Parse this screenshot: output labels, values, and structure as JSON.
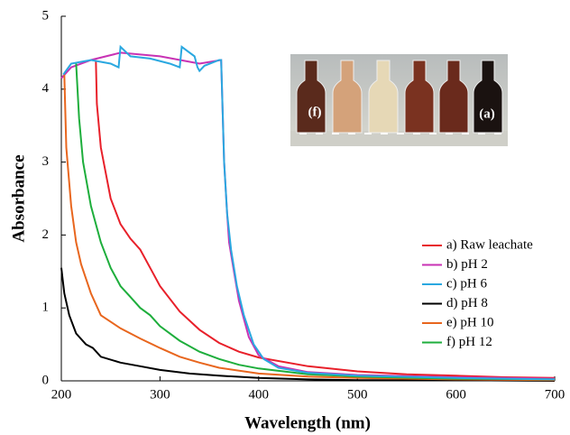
{
  "chart_data": {
    "type": "line",
    "x_label": "Wavelength (nm)",
    "y_label": "Absorbance",
    "xlim": [
      200,
      700
    ],
    "xticks": [
      200,
      300,
      400,
      500,
      600,
      700
    ],
    "ylim": [
      0,
      5
    ],
    "yticks": [
      0,
      1,
      2,
      3,
      4,
      5
    ],
    "legend": "lower right",
    "annotations": [
      "(f)",
      "(a)"
    ],
    "series": [
      {
        "name": "a) Raw leachate",
        "color": "#e8202a",
        "x": [
          235,
          236,
          240,
          250,
          260,
          270,
          280,
          290,
          300,
          320,
          340,
          360,
          380,
          400,
          450,
          500,
          550,
          600,
          650,
          700
        ],
        "values": [
          4.4,
          3.8,
          3.2,
          2.5,
          2.15,
          1.95,
          1.8,
          1.55,
          1.3,
          0.95,
          0.7,
          0.52,
          0.4,
          0.32,
          0.2,
          0.13,
          0.09,
          0.07,
          0.05,
          0.04
        ]
      },
      {
        "name": "b) pH 2",
        "color": "#c832b4",
        "x": [
          200,
          210,
          230,
          260,
          300,
          340,
          362,
          365,
          368,
          370,
          375,
          380,
          390,
          400,
          420,
          450,
          500,
          600,
          700
        ],
        "values": [
          4.15,
          4.3,
          4.4,
          4.5,
          4.45,
          4.35,
          4.4,
          3.0,
          2.3,
          1.9,
          1.5,
          1.1,
          0.6,
          0.35,
          0.2,
          0.12,
          0.08,
          0.05,
          0.03
        ]
      },
      {
        "name": "c) pH 6",
        "color": "#2aa8e0",
        "x": [
          202,
          210,
          230,
          250,
          258,
          260,
          270,
          290,
          310,
          320,
          322,
          335,
          338,
          340,
          345,
          360,
          362,
          365,
          368,
          372,
          378,
          385,
          395,
          405,
          420,
          450,
          500,
          600,
          700
        ],
        "values": [
          4.2,
          4.35,
          4.4,
          4.35,
          4.3,
          4.58,
          4.45,
          4.42,
          4.35,
          4.3,
          4.58,
          4.45,
          4.3,
          4.25,
          4.32,
          4.4,
          4.4,
          3.0,
          2.3,
          1.8,
          1.3,
          0.9,
          0.5,
          0.3,
          0.18,
          0.11,
          0.07,
          0.04,
          0.02
        ]
      },
      {
        "name": "d) pH 8",
        "color": "#000000",
        "x": [
          200,
          203,
          208,
          215,
          225,
          232,
          240,
          260,
          280,
          300,
          330,
          360,
          400,
          450,
          500,
          600,
          700
        ],
        "values": [
          1.55,
          1.2,
          0.9,
          0.65,
          0.5,
          0.45,
          0.33,
          0.25,
          0.2,
          0.15,
          0.1,
          0.07,
          0.04,
          0.02,
          0.01,
          0.01,
          0
        ]
      },
      {
        "name": "e) pH 10",
        "color": "#e8661e",
        "x": [
          203,
          205,
          210,
          215,
          220,
          230,
          240,
          260,
          280,
          300,
          320,
          340,
          360,
          400,
          450,
          500,
          600,
          700
        ],
        "values": [
          4.2,
          3.2,
          2.4,
          1.9,
          1.6,
          1.2,
          0.9,
          0.72,
          0.58,
          0.45,
          0.33,
          0.25,
          0.18,
          0.1,
          0.06,
          0.04,
          0.02,
          0.01
        ]
      },
      {
        "name": "f) pH 12",
        "color": "#1eae3c",
        "x": [
          215,
          218,
          222,
          230,
          240,
          250,
          260,
          270,
          280,
          290,
          300,
          320,
          340,
          360,
          380,
          400,
          450,
          500,
          600,
          700
        ],
        "values": [
          4.35,
          3.6,
          3.0,
          2.4,
          1.9,
          1.55,
          1.3,
          1.15,
          1.0,
          0.9,
          0.75,
          0.55,
          0.4,
          0.3,
          0.22,
          0.17,
          0.09,
          0.06,
          0.03,
          0.02
        ]
      }
    ]
  }
}
